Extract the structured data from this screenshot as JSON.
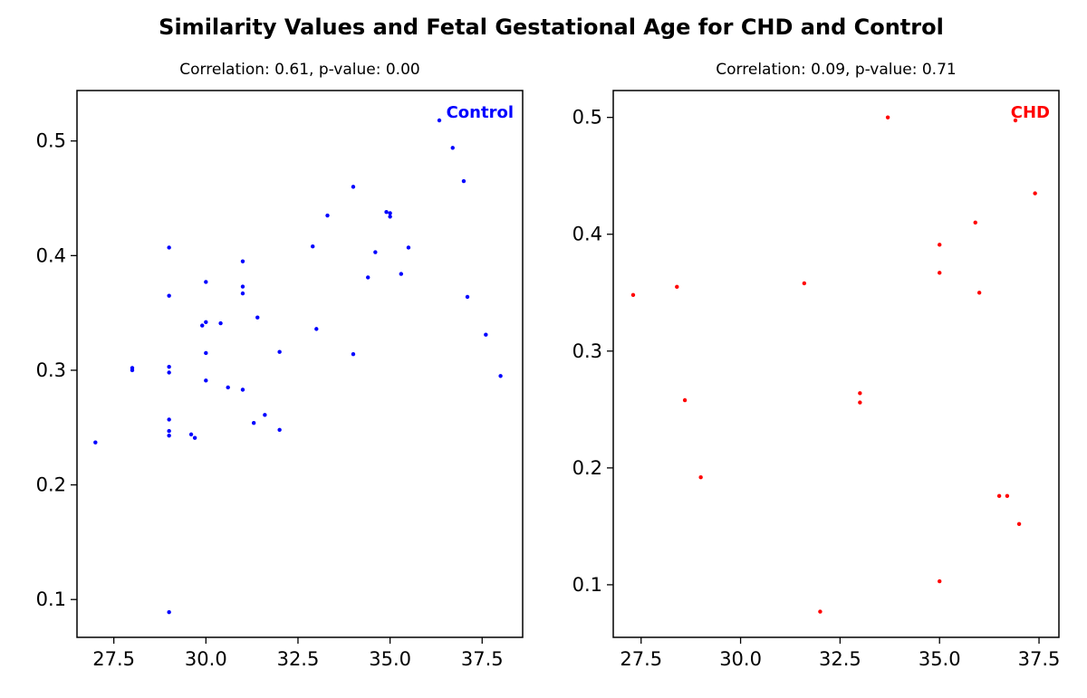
{
  "suptitle": "Similarity Values and Fetal Gestational Age for CHD and Control",
  "chart_data": [
    {
      "type": "scatter",
      "title": "Correlation: 0.61, p-value: 0.00",
      "xlabel": "",
      "ylabel": "",
      "xlim": [
        26.5,
        38.6
      ],
      "ylim": [
        0.067,
        0.544
      ],
      "xticks": [
        "27.5",
        "30.0",
        "32.5",
        "35.0",
        "37.5"
      ],
      "yticks": [
        "0.1",
        "0.2",
        "0.3",
        "0.4",
        "0.5"
      ],
      "legend": {
        "label": "Control",
        "color": "#0000ff",
        "position": "upper right"
      },
      "series": [
        {
          "name": "Control",
          "color": "#0000ff",
          "x": [
            27.0,
            28.0,
            28.0,
            29.0,
            29.0,
            29.0,
            29.0,
            29.0,
            29.0,
            29.0,
            29.0,
            29.6,
            29.7,
            29.9,
            30.0,
            30.0,
            30.0,
            30.0,
            30.4,
            30.6,
            31.0,
            31.0,
            31.0,
            31.0,
            31.3,
            31.4,
            31.6,
            32.0,
            32.0,
            32.9,
            33.0,
            33.3,
            34.0,
            34.0,
            34.4,
            34.6,
            34.9,
            35.0,
            35.0,
            35.3,
            35.5,
            36.7,
            37.0,
            37.1,
            37.6,
            38.0
          ],
          "y": [
            0.237,
            0.302,
            0.3,
            0.407,
            0.365,
            0.303,
            0.298,
            0.257,
            0.247,
            0.243,
            0.089,
            0.244,
            0.241,
            0.339,
            0.377,
            0.342,
            0.315,
            0.291,
            0.341,
            0.285,
            0.395,
            0.373,
            0.367,
            0.283,
            0.254,
            0.346,
            0.261,
            0.316,
            0.248,
            0.408,
            0.336,
            0.435,
            0.46,
            0.314,
            0.381,
            0.403,
            0.438,
            0.437,
            0.434,
            0.384,
            0.407,
            0.494,
            0.465,
            0.364,
            0.331,
            0.295
          ]
        }
      ]
    },
    {
      "type": "scatter",
      "title": "Correlation: 0.09, p-value: 0.71",
      "xlabel": "",
      "ylabel": "",
      "xlim": [
        26.8,
        38.0
      ],
      "ylim": [
        0.055,
        0.523
      ],
      "xticks": [
        "27.5",
        "30.0",
        "32.5",
        "35.0",
        "37.5"
      ],
      "yticks": [
        "0.1",
        "0.2",
        "0.3",
        "0.4",
        "0.5"
      ],
      "legend": {
        "label": "CHD",
        "color": "#ff0000",
        "position": "upper right"
      },
      "series": [
        {
          "name": "CHD",
          "color": "#ff0000",
          "x": [
            27.3,
            28.4,
            28.6,
            29.0,
            31.6,
            32.0,
            33.0,
            33.0,
            33.7,
            35.0,
            35.0,
            35.0,
            35.9,
            36.0,
            36.5,
            36.7,
            37.0,
            37.4
          ],
          "y": [
            0.348,
            0.355,
            0.258,
            0.192,
            0.358,
            0.077,
            0.264,
            0.256,
            0.5,
            0.391,
            0.367,
            0.103,
            0.41,
            0.35,
            0.176,
            0.176,
            0.152,
            0.435
          ]
        }
      ]
    }
  ]
}
